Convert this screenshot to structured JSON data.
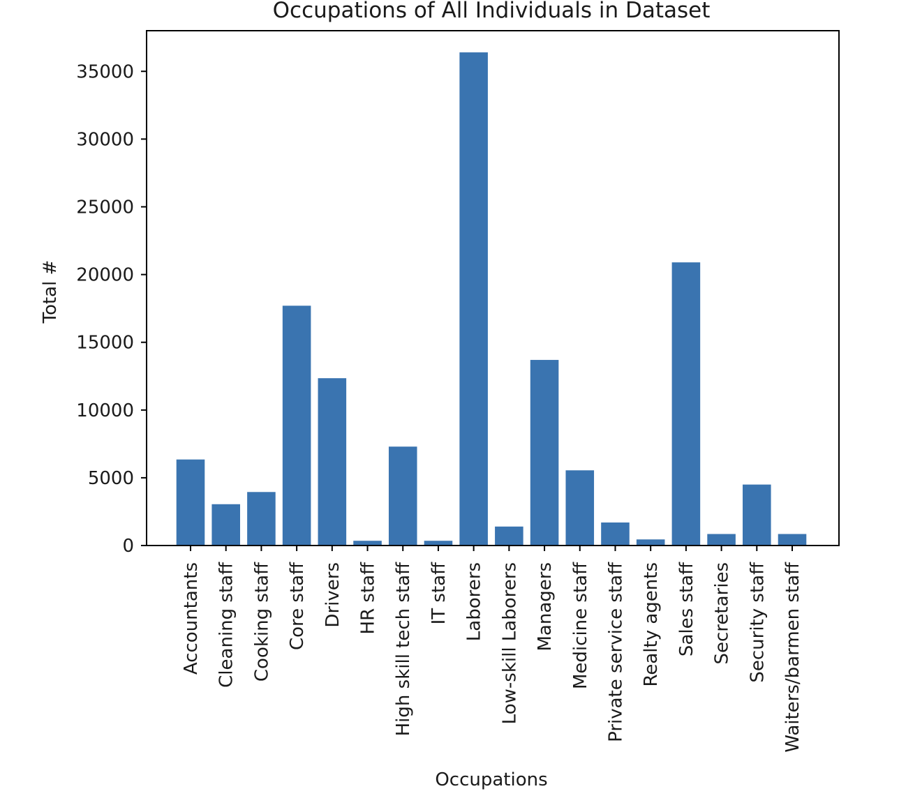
{
  "chart_data": {
    "type": "bar",
    "title": "Occupations of All Individuals in Dataset",
    "xlabel": "Occupations",
    "ylabel": "Total #",
    "ylim": [
      0,
      38000
    ],
    "yticks": [
      0,
      5000,
      10000,
      15000,
      20000,
      25000,
      30000,
      35000
    ],
    "ytick_labels": [
      "0",
      "5000",
      "10000",
      "15000",
      "20000",
      "25000",
      "30000",
      "35000"
    ],
    "categories": [
      "Accountants",
      "Cleaning staff",
      "Cooking staff",
      "Core staff",
      "Drivers",
      "HR staff",
      "High skill tech staff",
      "IT staff",
      "Laborers",
      "Low-skill Laborers",
      "Managers",
      "Medicine staff",
      "Private service staff",
      "Realty agents",
      "Sales staff",
      "Secretaries",
      "Security staff",
      "Waiters/barmen staff"
    ],
    "values": [
      6350,
      3050,
      3950,
      17700,
      12350,
      350,
      7300,
      350,
      36400,
      1400,
      13700,
      5550,
      1700,
      450,
      20900,
      850,
      4500,
      850
    ],
    "bar_color": "#3a74b0",
    "grid": false,
    "legend": "none"
  }
}
